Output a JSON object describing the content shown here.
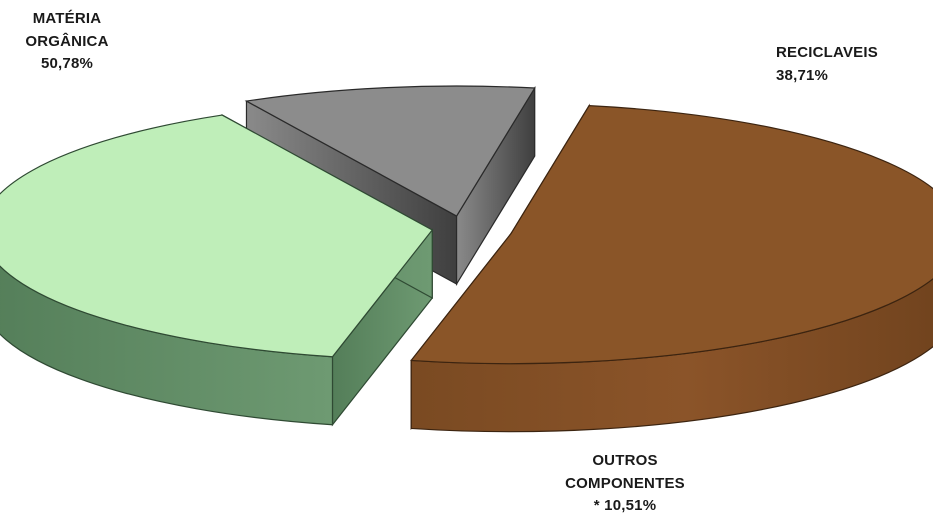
{
  "chart_data": {
    "type": "pie",
    "style": "3d-exploded",
    "title": "",
    "slices": [
      {
        "name": "MATÉRIA ORGÂNICA",
        "label_lines": [
          "MATÉRIA",
          "ORGÂNICA",
          "50,78%"
        ],
        "value": 50.78,
        "value_label": "50,78%",
        "color": "#8a5528"
      },
      {
        "name": "RECICLAVEIS",
        "label_lines": [
          "RECICLAVEIS",
          "38,71%"
        ],
        "value": 38.71,
        "value_label": "38,71%",
        "color": "#bfeeb9"
      },
      {
        "name": "OUTROS COMPONENTES",
        "label_lines": [
          "OUTROS",
          "COMPONENTES",
          "* 10,51%"
        ],
        "value": 10.51,
        "value_label": "* 10,51%",
        "color": "#8c8c8c"
      }
    ],
    "legend": "none"
  }
}
